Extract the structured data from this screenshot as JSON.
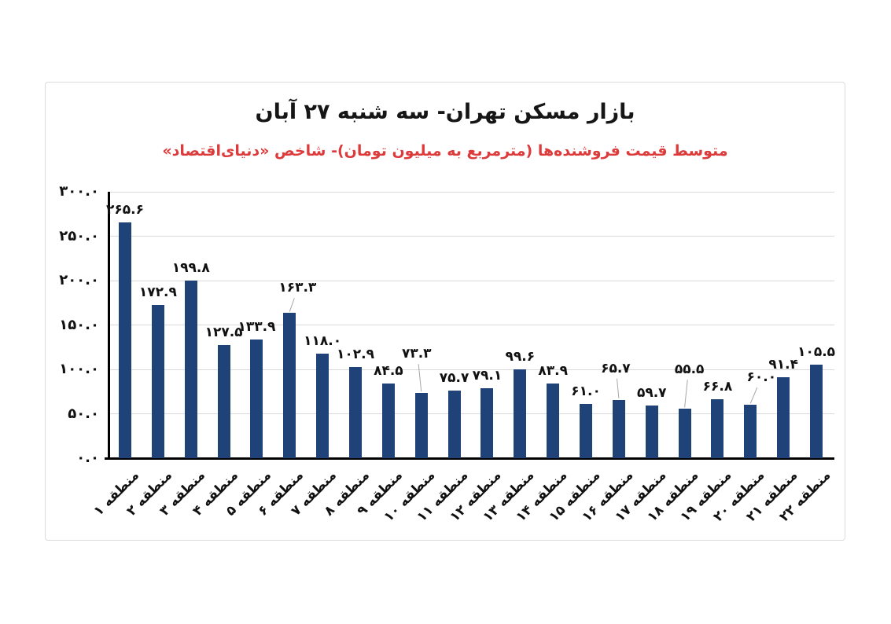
{
  "chart_data": {
    "type": "bar",
    "title": "بازار مسکن تهران- سه شنبه ۲۷ آبان",
    "subtitle": "متوسط قیمت فروشنده‌ها (مترمربع به میلیون تومان)- شاخص «دنیای‌اقتصاد»",
    "categories": [
      "منطقه ۱",
      "منطقه ۲",
      "منطقه ۳",
      "منطقه ۴",
      "منطقه ۵",
      "منطقه ۶",
      "منطقه ۷",
      "منطقه ۸",
      "منطقه ۹",
      "منطقه ۱۰",
      "منطقه ۱۱",
      "منطقه ۱۲",
      "منطقه ۱۳",
      "منطقه ۱۴",
      "منطقه ۱۵",
      "منطقه ۱۶",
      "منطقه ۱۷",
      "منطقه ۱۸",
      "منطقه ۱۹",
      "منطقه ۲۰",
      "منطقه ۲۱",
      "منطقه ۲۲"
    ],
    "values": [
      265.6,
      172.9,
      199.8,
      127.5,
      133.9,
      163.3,
      118.0,
      102.9,
      84.5,
      73.3,
      75.7,
      79.1,
      99.6,
      83.9,
      61.0,
      65.7,
      59.7,
      55.5,
      66.8,
      60.0,
      91.4,
      105.5
    ],
    "value_labels": [
      "۲۶۵.۶",
      "۱۷۲.۹",
      "۱۹۹.۸",
      "۱۲۷.۵",
      "۱۳۳.۹",
      "۱۶۳.۳",
      "۱۱۸.۰",
      "۱۰۲.۹",
      "۸۴.۵",
      "۷۳.۳",
      "۷۵.۷",
      "۷۹.۱",
      "۹۹.۶",
      "۸۳.۹",
      "۶۱.۰",
      "۶۵.۷",
      "۵۹.۷",
      "۵۵.۵",
      "۶۶.۸",
      "۶۰.۰",
      "۹۱.۴",
      "۱۰۵.۵"
    ],
    "ylim": [
      0,
      300
    ],
    "ytick_step": 50,
    "ytick_labels_top_to_bottom": [
      "۳۰۰.۰",
      "۲۵۰.۰",
      "۲۰۰.۰",
      "۱۵۰.۰",
      "۱۰۰.۰",
      "۵۰.۰",
      "۰.۰"
    ],
    "grid": true,
    "legend": "none",
    "callout_indices": [
      5,
      9,
      15,
      17,
      19
    ],
    "bar_color": "#1f4379",
    "direction": "rtl"
  },
  "colors": {
    "background": "#ffffff",
    "frame_border": "#dcdcdc",
    "title": "#161616",
    "subtitle": "#dd3b3b",
    "axis": "#000000",
    "gridline": "#d9d9d9",
    "leader_line": "#a6a6a6",
    "bar": "#1f4379"
  }
}
